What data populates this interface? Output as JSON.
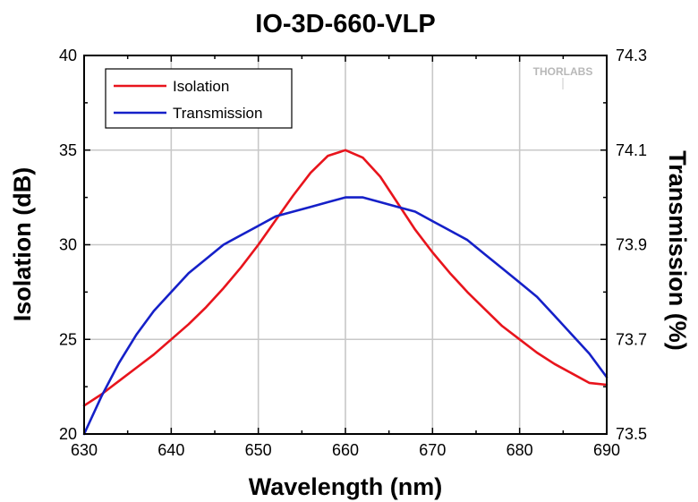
{
  "chart_data": {
    "type": "line",
    "title": "IO-3D-660-VLP",
    "xlabel": "Wavelength (nm)",
    "ylabel": "Isolation (dB)",
    "y2label": "Transmission (%)",
    "xlim": [
      630,
      690
    ],
    "ylim": [
      20,
      40
    ],
    "y2lim": [
      73.5,
      74.3
    ],
    "x_ticks": [
      "630",
      "640",
      "650",
      "660",
      "670",
      "680",
      "690"
    ],
    "y_ticks": [
      "20",
      "25",
      "30",
      "35",
      "40"
    ],
    "y2_ticks": [
      "73.5",
      "73.7",
      "73.9",
      "74.1",
      "74.3"
    ],
    "grid": true,
    "legend_position": "top-left",
    "brand": "THORLABS",
    "series": [
      {
        "name": "Isolation",
        "axis": "left",
        "color": "#e8141c",
        "x": [
          630,
          632,
          634,
          636,
          638,
          640,
          642,
          644,
          646,
          648,
          650,
          652,
          654,
          656,
          658,
          660,
          662,
          664,
          666,
          668,
          670,
          672,
          674,
          676,
          678,
          680,
          682,
          684,
          686,
          688,
          690
        ],
        "y": [
          21.5,
          22.1,
          22.8,
          23.5,
          24.2,
          25.0,
          25.8,
          26.7,
          27.7,
          28.8,
          30.0,
          31.3,
          32.6,
          33.8,
          34.7,
          35.0,
          34.6,
          33.6,
          32.2,
          30.8,
          29.6,
          28.5,
          27.5,
          26.6,
          25.7,
          25.0,
          24.3,
          23.7,
          23.2,
          22.7,
          22.6
        ]
      },
      {
        "name": "Transmission",
        "axis": "right",
        "color": "#1520c8",
        "x": [
          630,
          632,
          634,
          636,
          638,
          640,
          642,
          644,
          646,
          648,
          650,
          652,
          654,
          656,
          658,
          660,
          662,
          664,
          666,
          668,
          670,
          672,
          674,
          676,
          678,
          680,
          682,
          684,
          686,
          688,
          690
        ],
        "y": [
          73.5,
          73.58,
          73.65,
          73.71,
          73.76,
          73.8,
          73.84,
          73.87,
          73.9,
          73.92,
          73.94,
          73.96,
          73.97,
          73.98,
          73.99,
          74.0,
          74.0,
          73.99,
          73.98,
          73.97,
          73.95,
          73.93,
          73.91,
          73.88,
          73.85,
          73.82,
          73.79,
          73.75,
          73.71,
          73.67,
          73.62
        ]
      }
    ]
  }
}
